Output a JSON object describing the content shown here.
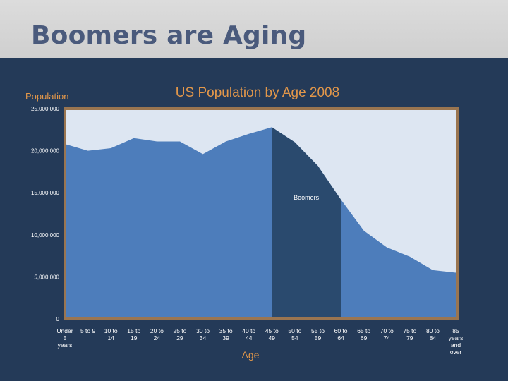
{
  "slide": {
    "title": "Boomers are Aging"
  },
  "colors": {
    "background": "#243a58",
    "title_bar": "#d6d6d6",
    "title_text": "#4a5a7c",
    "plot_background": "#dde6f2",
    "plot_border": "#9a7550",
    "area_fill": "#4d7dbb",
    "highlight_fill": "#2a4a6e",
    "chart_title": "#e2974a",
    "axis_title": "#e2974a",
    "tick_text": "#ffffff"
  },
  "chart_data": {
    "type": "area",
    "title": "US Population by Age 2008",
    "xlabel": "Age",
    "ylabel": "Population",
    "ylim": [
      0,
      25000000
    ],
    "yticks": [
      0,
      5000000,
      10000000,
      15000000,
      20000000,
      25000000
    ],
    "ytick_labels": [
      "0",
      "5,000,000",
      "10,000,000",
      "15,000,000",
      "20,000,000",
      "25,000,000"
    ],
    "categories": [
      [
        "Under",
        "5",
        "years"
      ],
      [
        "5 to 9"
      ],
      [
        "10 to",
        "14"
      ],
      [
        "15 to",
        "19"
      ],
      [
        "20 to",
        "24"
      ],
      [
        "25 to",
        "29"
      ],
      [
        "30 to",
        "34"
      ],
      [
        "35 to",
        "39"
      ],
      [
        "40 to",
        "44"
      ],
      [
        "45 to",
        "49"
      ],
      [
        "50 to",
        "54"
      ],
      [
        "55 to",
        "59"
      ],
      [
        "60 to",
        "64"
      ],
      [
        "65 to",
        "69"
      ],
      [
        "70 to",
        "74"
      ],
      [
        "75 to",
        "79"
      ],
      [
        "80 to",
        "84"
      ],
      [
        "85",
        "years",
        "and",
        "over"
      ]
    ],
    "values": [
      20800000,
      20000000,
      20300000,
      21500000,
      21100000,
      21100000,
      19600000,
      21100000,
      22000000,
      22800000,
      21000000,
      18200000,
      14200000,
      10500000,
      8500000,
      7400000,
      5800000,
      5500000
    ],
    "highlight": {
      "label": "Boomers",
      "from_index": 9,
      "to_index": 12
    },
    "grid": false,
    "legend": "none"
  }
}
